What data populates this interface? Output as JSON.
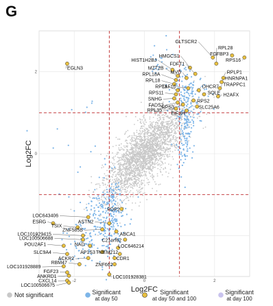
{
  "panel_letter": "G",
  "chart_data": {
    "type": "scatter",
    "xlabel": "Log2FC",
    "ylabel": "Log2FC",
    "xlim": [
      -3,
      3
    ],
    "ylim": [
      -3,
      3
    ],
    "x_ticks": [
      -2,
      0,
      2
    ],
    "y_ticks": [
      -2,
      0,
      2
    ],
    "x_thresholds": [
      -1,
      1
    ],
    "y_thresholds": [
      -1,
      1
    ],
    "grid": true,
    "legend_position": "bottom",
    "colors": {
      "not_significant": "#c8c8c8",
      "day50": "#7db5e8",
      "both": "#e8c040",
      "day100": "#c9c3ee",
      "threshold": "#c0282a"
    },
    "legend": [
      {
        "key": "not_significant",
        "label_lines": [
          "Not significant"
        ]
      },
      {
        "key": "day50",
        "label_lines": [
          "Significant",
          "at day 50"
        ]
      },
      {
        "key": "both",
        "label_lines": [
          "Significant",
          "at day 50 and 100"
        ]
      },
      {
        "key": "day100",
        "label_lines": [
          "Significant",
          "at day 100"
        ]
      }
    ],
    "labeled_genes": [
      {
        "name": "EGLN3",
        "x": -2.2,
        "y": 2.2,
        "lx": -2.2,
        "ly": 2.05
      },
      {
        "name": "GLTSCR2",
        "x": 1.95,
        "y": 2.35,
        "lx": 1.5,
        "ly": 2.7
      },
      {
        "name": "RPL28",
        "x": 2.05,
        "y": 2.2,
        "lx": 2.1,
        "ly": 2.55
      },
      {
        "name": "FGFBP3",
        "x": 2.5,
        "y": 2.4,
        "lx": 2.4,
        "ly": 2.4
      },
      {
        "name": "RPS16",
        "x": 2.85,
        "y": 2.35,
        "lx": 2.75,
        "ly": 2.25
      },
      {
        "name": "HMGCS1",
        "x": 1.3,
        "y": 2.1,
        "lx": 1.0,
        "ly": 2.35
      },
      {
        "name": "HIST1H2BJ",
        "x": 0.8,
        "y": 2.05,
        "lx": 0.35,
        "ly": 2.25
      },
      {
        "name": "FDFT1",
        "x": 1.45,
        "y": 1.95,
        "lx": 1.15,
        "ly": 2.15
      },
      {
        "name": "MZT2B",
        "x": 0.95,
        "y": 1.9,
        "lx": 0.55,
        "ly": 2.05
      },
      {
        "name": "MVD",
        "x": 1.2,
        "y": 1.85,
        "lx": 1.05,
        "ly": 1.95
      },
      {
        "name": "RPLP1",
        "x": 2.25,
        "y": 1.85,
        "lx": 2.35,
        "ly": 1.95
      },
      {
        "name": "RPL18A",
        "x": 0.9,
        "y": 1.8,
        "lx": 0.45,
        "ly": 1.9
      },
      {
        "name": "HNRNPA1",
        "x": 2.2,
        "y": 1.75,
        "lx": 2.3,
        "ly": 1.8
      },
      {
        "name": "RPL18",
        "x": 0.85,
        "y": 1.7,
        "lx": 0.45,
        "ly": 1.75
      },
      {
        "name": "TRAPPC1",
        "x": 2.15,
        "y": 1.6,
        "lx": 2.25,
        "ly": 1.65
      },
      {
        "name": "TAF10",
        "x": 1.25,
        "y": 1.6,
        "lx": 0.9,
        "ly": 1.6
      },
      {
        "name": "RPL3",
        "x": 0.95,
        "y": 1.55,
        "lx": 0.65,
        "ly": 1.6
      },
      {
        "name": "DHCR7",
        "x": 1.55,
        "y": 1.55,
        "lx": 1.65,
        "ly": 1.6
      },
      {
        "name": "RPS11",
        "x": 0.9,
        "y": 1.45,
        "lx": 0.55,
        "ly": 1.45
      },
      {
        "name": "SQLE",
        "x": 1.7,
        "y": 1.45,
        "lx": 1.8,
        "ly": 1.45
      },
      {
        "name": "H2AFX",
        "x": 2.1,
        "y": 1.4,
        "lx": 2.25,
        "ly": 1.4
      },
      {
        "name": "SNHG",
        "x": 0.85,
        "y": 1.35,
        "lx": 0.5,
        "ly": 1.3
      },
      {
        "name": "RPS2",
        "x": 1.4,
        "y": 1.3,
        "lx": 1.5,
        "ly": 1.25
      },
      {
        "name": "FADS2",
        "x": 0.95,
        "y": 1.25,
        "lx": 0.55,
        "ly": 1.15
      },
      {
        "name": "RPS3",
        "x": 1.1,
        "y": 1.2,
        "lx": 0.85,
        "ly": 1.1
      },
      {
        "name": "SLC25A6",
        "x": 1.5,
        "y": 1.15,
        "lx": 1.55,
        "ly": 1.1
      },
      {
        "name": "RPL35",
        "x": 0.9,
        "y": 1.1,
        "lx": 0.5,
        "ly": 1.02
      },
      {
        "name": "EIF3H",
        "x": 1.2,
        "y": 1.05,
        "lx": 1.15,
        "ly": 0.95
      },
      {
        "name": "PDP2",
        "x": -0.65,
        "y": -1.35,
        "lx": -0.7,
        "ly": -1.4
      },
      {
        "name": "LOC643406",
        "x": -1.6,
        "y": -1.55,
        "lx": -2.45,
        "ly": -1.55
      },
      {
        "name": "ESRG",
        "x": -2.6,
        "y": -1.7,
        "lx": -2.8,
        "ly": -1.7
      },
      {
        "name": "ASTN2",
        "x": -1.0,
        "y": -1.7,
        "lx": -1.45,
        "ly": -1.7
      },
      {
        "name": "TSIX",
        "x": -1.9,
        "y": -1.8,
        "lx": -2.35,
        "ly": -1.8
      },
      {
        "name": "ZNF585B",
        "x": -1.2,
        "y": -1.85,
        "lx": -1.75,
        "ly": -1.9
      },
      {
        "name": "ABCA1",
        "x": -0.8,
        "y": -1.9,
        "lx": -0.7,
        "ly": -2.0
      },
      {
        "name": "LOC101929415",
        "x": -1.75,
        "y": -2.0,
        "lx": -2.65,
        "ly": -2.0
      },
      {
        "name": "LOC100506688",
        "x": -1.75,
        "y": -2.1,
        "lx": -2.6,
        "ly": -2.1
      },
      {
        "name": "C21orf62",
        "x": -0.55,
        "y": -2.1,
        "lx": -0.65,
        "ly": -2.15
      },
      {
        "name": "POU2AF1",
        "x": -2.3,
        "y": -2.25,
        "lx": -2.8,
        "ly": -2.25
      },
      {
        "name": "NAD",
        "x": -1.55,
        "y": -2.25,
        "lx": -1.7,
        "ly": -2.25
      },
      {
        "name": "LOC646214",
        "x": -0.75,
        "y": -2.3,
        "lx": -0.75,
        "ly": -2.3
      },
      {
        "name": "SLC9A4",
        "x": -2.2,
        "y": -2.45,
        "lx": -2.65,
        "ly": -2.45
      },
      {
        "name": "AP1S3",
        "x": -1.2,
        "y": -2.4,
        "lx": -1.4,
        "ly": -2.45
      },
      {
        "name": "TMEM212",
        "x": -0.7,
        "y": -2.45,
        "lx": -0.75,
        "ly": -2.45
      },
      {
        "name": "CDR1",
        "x": -0.85,
        "y": -2.55,
        "lx": -0.8,
        "ly": -2.6
      },
      {
        "name": "ACKR2",
        "x": -1.6,
        "y": -2.55,
        "lx": -2.0,
        "ly": -2.6
      },
      {
        "name": "RBM47",
        "x": -1.85,
        "y": -2.7,
        "lx": -2.2,
        "ly": -2.7
      },
      {
        "name": "LOC101928889",
        "x": -2.3,
        "y": -2.75,
        "lx": -2.95,
        "ly": -2.8
      },
      {
        "name": "ZNF662",
        "x": -0.85,
        "y": -2.7,
        "lx": -0.9,
        "ly": -2.75
      },
      {
        "name": "FGF23",
        "x": -2.2,
        "y": -2.9,
        "lx": -2.45,
        "ly": -2.92
      },
      {
        "name": "ANKRD1",
        "x": -2.15,
        "y": -2.98,
        "lx": -2.5,
        "ly": -3.03
      },
      {
        "name": "LOC101928381",
        "x": -1.0,
        "y": -2.95,
        "lx": -0.9,
        "ly": -3.05
      },
      {
        "name": "CXCL14",
        "x": -2.2,
        "y": -3.1,
        "lx": -2.5,
        "ly": -3.14
      },
      {
        "name": "LOC100506675",
        "x": -2.15,
        "y": -3.15,
        "lx": -2.55,
        "ly": -3.25
      }
    ]
  }
}
